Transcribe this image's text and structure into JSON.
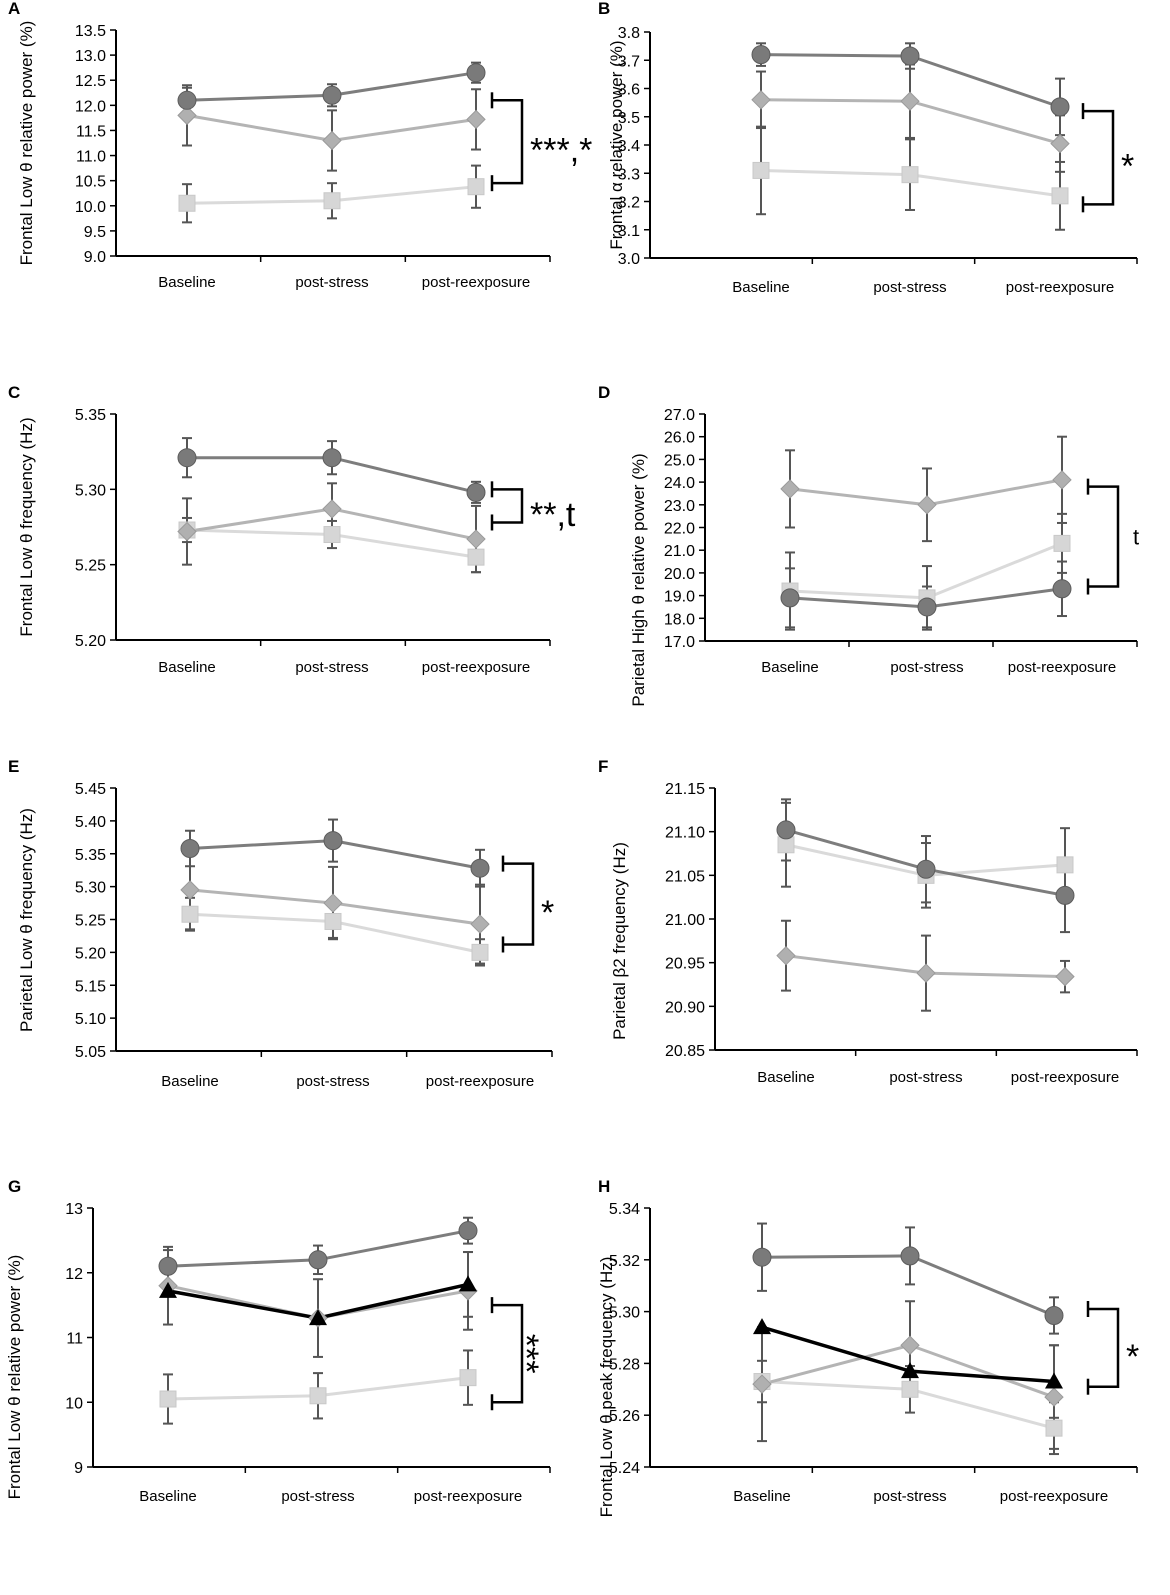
{
  "figure": {
    "categories": [
      "Baseline",
      "post-stress",
      "post-reexposure"
    ],
    "colors": {
      "circle": "#7a7a7a",
      "diamond": "#b0b0b0",
      "square": "#d6d6d6",
      "triangle": "#000000",
      "axis": "#000000",
      "errorbar": "#555555"
    }
  },
  "chart_data": [
    {
      "panel": "A",
      "type": "line",
      "ylabel": "Frontal Low θ relative power (%)",
      "ylim": [
        9.0,
        13.5
      ],
      "yticks": [
        9.0,
        9.5,
        10.0,
        10.5,
        11.0,
        11.5,
        12.0,
        12.5,
        13.0,
        13.5
      ],
      "decimals": 1,
      "categories": [
        "Baseline",
        "post-stress",
        "post-reexposure"
      ],
      "series": [
        {
          "marker": "circle",
          "values": [
            12.1,
            12.2,
            12.65
          ],
          "errors": [
            0.25,
            0.22,
            0.2
          ]
        },
        {
          "marker": "diamond",
          "values": [
            11.8,
            11.3,
            11.72
          ],
          "errors": [
            0.6,
            0.6,
            0.6
          ]
        },
        {
          "marker": "square",
          "values": [
            10.05,
            10.1,
            10.38
          ],
          "errors": [
            0.38,
            0.35,
            0.42
          ]
        }
      ],
      "annotation": {
        "text": "***,*",
        "from": 12.1,
        "to": 10.45
      }
    },
    {
      "panel": "B",
      "type": "line",
      "ylabel": "Frontal α relative power (%)",
      "ylim": [
        3.0,
        3.8
      ],
      "yticks": [
        3.0,
        3.1,
        3.2,
        3.3,
        3.4,
        3.5,
        3.6,
        3.7,
        3.8
      ],
      "decimals": 1,
      "categories": [
        "Baseline",
        "post-stress",
        "post-reexposure"
      ],
      "series": [
        {
          "marker": "circle",
          "values": [
            3.72,
            3.715,
            3.535
          ],
          "errors": [
            0.04,
            0.045,
            0.1
          ]
        },
        {
          "marker": "diamond",
          "values": [
            3.56,
            3.555,
            3.405
          ],
          "errors": [
            0.1,
            0.13,
            0.1
          ]
        },
        {
          "marker": "square",
          "values": [
            3.31,
            3.295,
            3.22
          ],
          "errors": [
            0.155,
            0.125,
            0.12
          ]
        }
      ],
      "annotation": {
        "text": "*",
        "from": 3.52,
        "to": 3.19
      }
    },
    {
      "panel": "C",
      "type": "line",
      "ylabel": "Frontal Low θ frequency (Hz)",
      "ylim": [
        5.2,
        5.35
      ],
      "yticks": [
        5.2,
        5.25,
        5.3,
        5.35
      ],
      "decimals": 2,
      "categories": [
        "Baseline",
        "post-stress",
        "post-reexposure"
      ],
      "series": [
        {
          "marker": "circle",
          "values": [
            5.321,
            5.321,
            5.298
          ],
          "errors": [
            0.013,
            0.011,
            0.007
          ]
        },
        {
          "marker": "diamond",
          "values": [
            5.272,
            5.287,
            5.267
          ],
          "errors": [
            0.022,
            0.017,
            0.022
          ]
        },
        {
          "marker": "square",
          "values": [
            5.273,
            5.27,
            5.255
          ],
          "errors": [
            0.008,
            0.009,
            0.01
          ]
        }
      ],
      "annotation": {
        "text": "**,t",
        "from": 5.3,
        "to": 5.278
      }
    },
    {
      "panel": "D",
      "type": "line",
      "ylabel": "Parietal High θ relative power (%)",
      "ylim": [
        17.0,
        27.0
      ],
      "yticks": [
        17.0,
        18.0,
        19.0,
        20.0,
        21.0,
        22.0,
        23.0,
        24.0,
        25.0,
        26.0,
        27.0
      ],
      "decimals": 1,
      "categories": [
        "Baseline",
        "post-stress",
        "post-reexposure"
      ],
      "series": [
        {
          "marker": "circle",
          "values": [
            18.9,
            18.5,
            19.3
          ],
          "errors": [
            1.3,
            0.9,
            1.2
          ]
        },
        {
          "marker": "diamond",
          "values": [
            23.7,
            23.0,
            24.1
          ],
          "errors": [
            1.7,
            1.6,
            1.9
          ]
        },
        {
          "marker": "square",
          "values": [
            19.2,
            18.9,
            21.3
          ],
          "errors": [
            1.7,
            1.4,
            1.3
          ]
        }
      ],
      "annotation": {
        "text": "t",
        "from": 23.8,
        "to": 19.4
      }
    },
    {
      "panel": "E",
      "type": "line",
      "ylabel": "Parietal Low θ frequency (Hz)",
      "ylim": [
        5.05,
        5.45
      ],
      "yticks": [
        5.05,
        5.1,
        5.15,
        5.2,
        5.25,
        5.3,
        5.35,
        5.4,
        5.45
      ],
      "decimals": 2,
      "categories": [
        "Baseline",
        "post-stress",
        "post-reexposure"
      ],
      "series": [
        {
          "marker": "circle",
          "values": [
            5.358,
            5.37,
            5.328
          ],
          "errors": [
            0.027,
            0.032,
            0.028
          ]
        },
        {
          "marker": "diamond",
          "values": [
            5.295,
            5.275,
            5.243
          ],
          "errors": [
            0.06,
            0.055,
            0.06
          ]
        },
        {
          "marker": "square",
          "values": [
            5.258,
            5.247,
            5.2
          ],
          "errors": [
            0.025,
            0.025,
            0.02
          ]
        }
      ],
      "annotation": {
        "text": "*",
        "from": 5.335,
        "to": 5.212
      }
    },
    {
      "panel": "F",
      "type": "line",
      "ylabel": "Parietal β2 frequency (Hz)",
      "ylim": [
        20.85,
        21.15
      ],
      "yticks": [
        20.85,
        20.9,
        20.95,
        21.0,
        21.05,
        21.1,
        21.15
      ],
      "decimals": 2,
      "categories": [
        "Baseline",
        "post-stress",
        "post-reexposure"
      ],
      "series": [
        {
          "marker": "circle",
          "values": [
            21.102,
            21.057,
            21.027
          ],
          "errors": [
            0.035,
            0.038,
            0.042
          ]
        },
        {
          "marker": "diamond",
          "values": [
            20.958,
            20.938,
            20.934
          ],
          "errors": [
            0.04,
            0.043,
            0.018
          ]
        },
        {
          "marker": "square",
          "values": [
            21.085,
            21.05,
            21.062
          ],
          "errors": [
            0.048,
            0.037,
            0.042
          ]
        }
      ],
      "annotation": null
    },
    {
      "panel": "G",
      "type": "line",
      "ylabel": "Frontal Low θ relative power (%)",
      "ylim": [
        9,
        13
      ],
      "yticks": [
        9,
        10,
        11,
        12,
        13
      ],
      "decimals": 0,
      "categories": [
        "Baseline",
        "post-stress",
        "post-reexposure"
      ],
      "series": [
        {
          "marker": "circle",
          "values": [
            12.1,
            12.2,
            12.65
          ],
          "errors": [
            0.25,
            0.22,
            0.2
          ]
        },
        {
          "marker": "diamond",
          "values": [
            11.8,
            11.3,
            11.72
          ],
          "errors": [
            0.6,
            0.6,
            0.6
          ]
        },
        {
          "marker": "square",
          "values": [
            10.05,
            10.1,
            10.38
          ],
          "errors": [
            0.38,
            0.35,
            0.42
          ]
        },
        {
          "marker": "triangle",
          "values": [
            11.72,
            11.3,
            11.82
          ],
          "errors": [
            0,
            0,
            0.5
          ]
        }
      ],
      "annotation": {
        "text": "***",
        "from": 11.5,
        "to": 10.0
      }
    },
    {
      "panel": "H",
      "type": "line",
      "ylabel": "Frontal Low θ peak frequency (Hz)",
      "ylim": [
        5.24,
        5.34
      ],
      "yticks": [
        5.24,
        5.26,
        5.28,
        5.3,
        5.32,
        5.34
      ],
      "decimals": 2,
      "categories": [
        "Baseline",
        "post-stress",
        "post-reexposure"
      ],
      "series": [
        {
          "marker": "circle",
          "values": [
            5.321,
            5.3215,
            5.2985
          ],
          "errors": [
            0.013,
            0.011,
            0.007
          ]
        },
        {
          "marker": "diamond",
          "values": [
            5.272,
            5.287,
            5.267
          ],
          "errors": [
            0.022,
            0.017,
            0.02
          ]
        },
        {
          "marker": "square",
          "values": [
            5.273,
            5.27,
            5.255
          ],
          "errors": [
            0.008,
            0.009,
            0.01
          ]
        },
        {
          "marker": "triangle",
          "values": [
            5.294,
            5.277,
            5.273
          ],
          "errors": [
            0,
            0,
            0.014
          ]
        }
      ],
      "annotation": {
        "text": "*",
        "from": 5.301,
        "to": 5.271
      }
    }
  ]
}
